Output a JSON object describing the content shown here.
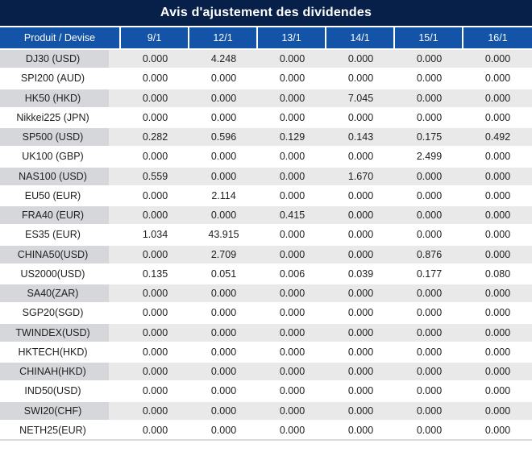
{
  "title": "Avis d'ajustement des dividendes",
  "colors": {
    "title_bar_navy": "#062049",
    "header_blue": "#1353A8",
    "row_gray": "#E9E9E9",
    "product_cell_gray": "#D5D7DB",
    "highlight_red": "#FF0000",
    "text_black": "#202020"
  },
  "table": {
    "product_header": "Produit / Devise",
    "date_headers": [
      "9/1",
      "12/1",
      "13/1",
      "14/1",
      "15/1",
      "16/1"
    ],
    "rows": [
      {
        "product": "DJ30 (USD)",
        "values": [
          "0.000",
          "4.248",
          "0.000",
          "0.000",
          "0.000",
          "0.000"
        ],
        "red": [
          false,
          true,
          false,
          false,
          false,
          false
        ]
      },
      {
        "product": "SPI200 (AUD)",
        "values": [
          "0.000",
          "0.000",
          "0.000",
          "0.000",
          "0.000",
          "0.000"
        ],
        "red": [
          false,
          false,
          false,
          false,
          false,
          false
        ]
      },
      {
        "product": "HK50 (HKD)",
        "values": [
          "0.000",
          "0.000",
          "0.000",
          "7.045",
          "0.000",
          "0.000"
        ],
        "red": [
          false,
          false,
          false,
          true,
          false,
          false
        ]
      },
      {
        "product": "Nikkei225 (JPN)",
        "values": [
          "0.000",
          "0.000",
          "0.000",
          "0.000",
          "0.000",
          "0.000"
        ],
        "red": [
          false,
          false,
          false,
          false,
          false,
          false
        ]
      },
      {
        "product": "SP500 (USD)",
        "values": [
          "0.282",
          "0.596",
          "0.129",
          "0.143",
          "0.175",
          "0.492"
        ],
        "red": [
          true,
          true,
          true,
          true,
          true,
          true
        ]
      },
      {
        "product": "UK100 (GBP)",
        "values": [
          "0.000",
          "0.000",
          "0.000",
          "0.000",
          "2.499",
          "0.000"
        ],
        "red": [
          false,
          false,
          false,
          false,
          true,
          false
        ]
      },
      {
        "product": "NAS100 (USD)",
        "values": [
          "0.559",
          "0.000",
          "0.000",
          "1.670",
          "0.000",
          "0.000"
        ],
        "red": [
          true,
          false,
          false,
          true,
          false,
          false
        ]
      },
      {
        "product": "EU50 (EUR)",
        "values": [
          "0.000",
          "2.114",
          "0.000",
          "0.000",
          "0.000",
          "0.000"
        ],
        "red": [
          false,
          true,
          false,
          false,
          false,
          false
        ]
      },
      {
        "product": "FRA40 (EUR)",
        "values": [
          "0.000",
          "0.000",
          "0.415",
          "0.000",
          "0.000",
          "0.000"
        ],
        "red": [
          false,
          false,
          true,
          false,
          false,
          false
        ]
      },
      {
        "product": "ES35 (EUR)",
        "values": [
          "1.034",
          "43.915",
          "0.000",
          "0.000",
          "0.000",
          "0.000"
        ],
        "red": [
          true,
          true,
          false,
          false,
          false,
          false
        ]
      },
      {
        "product": "CHINA50(USD)",
        "values": [
          "0.000",
          "2.709",
          "0.000",
          "0.000",
          "0.876",
          "0.000"
        ],
        "red": [
          false,
          true,
          false,
          false,
          true,
          false
        ]
      },
      {
        "product": "US2000(USD)",
        "values": [
          "0.135",
          "0.051",
          "0.006",
          "0.039",
          "0.177",
          "0.080"
        ],
        "red": [
          true,
          true,
          true,
          true,
          true,
          true
        ]
      },
      {
        "product": "SA40(ZAR)",
        "values": [
          "0.000",
          "0.000",
          "0.000",
          "0.000",
          "0.000",
          "0.000"
        ],
        "red": [
          false,
          false,
          false,
          false,
          false,
          false
        ]
      },
      {
        "product": "SGP20(SGD)",
        "values": [
          "0.000",
          "0.000",
          "0.000",
          "0.000",
          "0.000",
          "0.000"
        ],
        "red": [
          false,
          false,
          false,
          false,
          false,
          false
        ]
      },
      {
        "product": "TWINDEX(USD)",
        "values": [
          "0.000",
          "0.000",
          "0.000",
          "0.000",
          "0.000",
          "0.000"
        ],
        "red": [
          false,
          false,
          false,
          false,
          false,
          false
        ]
      },
      {
        "product": "HKTECH(HKD)",
        "values": [
          "0.000",
          "0.000",
          "0.000",
          "0.000",
          "0.000",
          "0.000"
        ],
        "red": [
          false,
          false,
          false,
          false,
          false,
          false
        ]
      },
      {
        "product": "CHINAH(HKD)",
        "values": [
          "0.000",
          "0.000",
          "0.000",
          "0.000",
          "0.000",
          "0.000"
        ],
        "red": [
          false,
          false,
          false,
          false,
          false,
          false
        ]
      },
      {
        "product": "IND50(USD)",
        "values": [
          "0.000",
          "0.000",
          "0.000",
          "0.000",
          "0.000",
          "0.000"
        ],
        "red": [
          false,
          false,
          false,
          false,
          false,
          false
        ]
      },
      {
        "product": "SWI20(CHF)",
        "values": [
          "0.000",
          "0.000",
          "0.000",
          "0.000",
          "0.000",
          "0.000"
        ],
        "red": [
          false,
          false,
          false,
          false,
          false,
          false
        ]
      },
      {
        "product": "NETH25(EUR)",
        "values": [
          "0.000",
          "0.000",
          "0.000",
          "0.000",
          "0.000",
          "0.000"
        ],
        "red": [
          false,
          false,
          false,
          false,
          false,
          false
        ]
      }
    ]
  }
}
